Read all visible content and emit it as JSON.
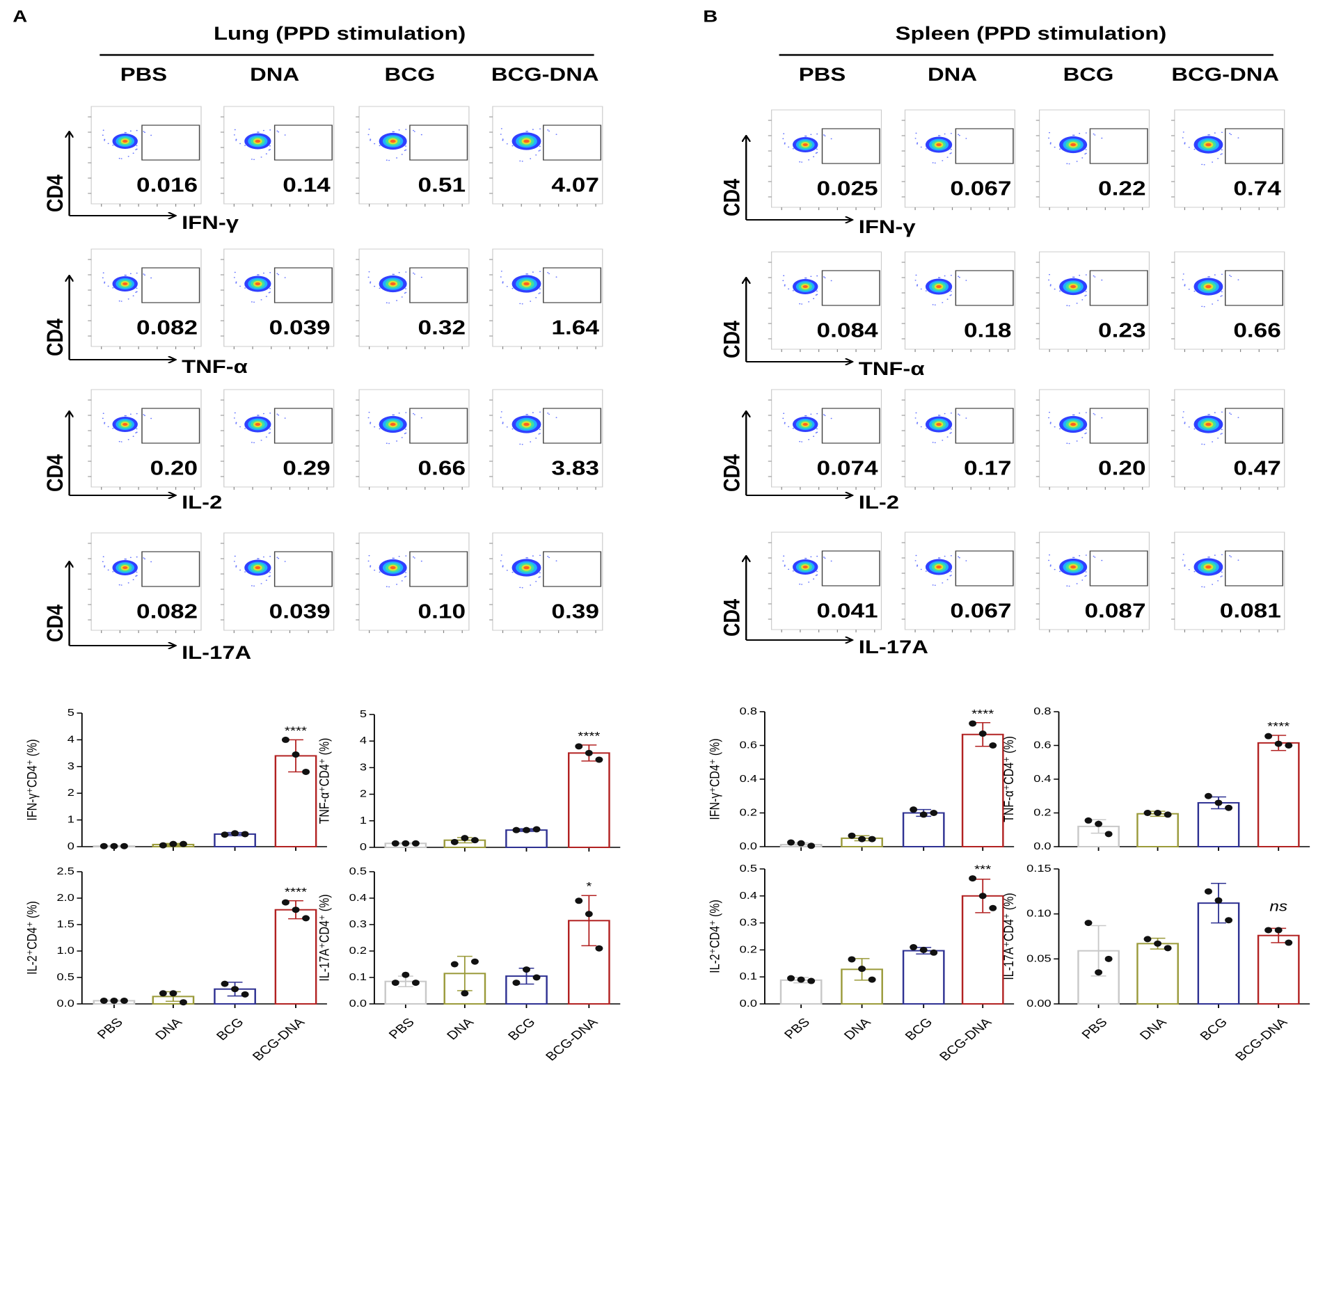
{
  "panels": [
    {
      "label": "A",
      "title": "Lung (PPD stimulation)",
      "groups": [
        "PBS",
        "DNA",
        "BCG",
        "BCG-DNA"
      ],
      "rows": [
        {
          "y_label": "CD4",
          "x_label": "IFN-γ",
          "values": [
            "0.016",
            "0.14",
            "0.51",
            "4.07"
          ]
        },
        {
          "y_label": "CD4",
          "x_label": "TNF-α",
          "values": [
            "0.082",
            "0.039",
            "0.32",
            "1.64"
          ]
        },
        {
          "y_label": "CD4",
          "x_label": "IL-2",
          "values": [
            "0.20",
            "0.29",
            "0.66",
            "3.83"
          ]
        },
        {
          "y_label": "CD4",
          "x_label": "IL-17A",
          "values": [
            "0.082",
            "0.039",
            "0.10",
            "0.39"
          ]
        }
      ]
    },
    {
      "label": "B",
      "title": "Spleen (PPD stimulation)",
      "groups": [
        "PBS",
        "DNA",
        "BCG",
        "BCG-DNA"
      ],
      "rows": [
        {
          "y_label": "CD4",
          "x_label": "IFN-γ",
          "values": [
            "0.025",
            "0.067",
            "0.22",
            "0.74"
          ]
        },
        {
          "y_label": "CD4",
          "x_label": "TNF-α",
          "values": [
            "0.084",
            "0.18",
            "0.23",
            "0.66"
          ]
        },
        {
          "y_label": "CD4",
          "x_label": "IL-2",
          "values": [
            "0.074",
            "0.17",
            "0.20",
            "0.47"
          ]
        },
        {
          "y_label": "CD4",
          "x_label": "IL-17A",
          "values": [
            "0.041",
            "0.067",
            "0.087",
            "0.081"
          ]
        }
      ]
    }
  ],
  "chart_data": [
    {
      "type": "bar",
      "ylabel": "IFN-γ⁺CD4⁺ (%)",
      "values": [
        0.02,
        0.08,
        0.47,
        3.4
      ],
      "errors": [
        0.02,
        0.04,
        0.06,
        0.6
      ],
      "points": [
        [
          0.02,
          0.02,
          0.02
        ],
        [
          0.05,
          0.1,
          0.1
        ],
        [
          0.45,
          0.5,
          0.47
        ],
        [
          4.0,
          3.45,
          2.8
        ]
      ],
      "colors": [
        "#c8c8c8",
        "#9a9a3a",
        "#2e3192",
        "#b22222"
      ],
      "annotations": [
        null,
        null,
        null,
        "****"
      ],
      "ylim": [
        0,
        5
      ],
      "yticks": [
        0,
        1,
        2,
        3,
        4,
        5
      ]
    },
    {
      "type": "bar",
      "ylabel": "TNF-α⁺CD4⁺ (%)",
      "values": [
        0.15,
        0.27,
        0.65,
        3.55
      ],
      "errors": [
        0.02,
        0.1,
        0.05,
        0.3
      ],
      "points": [
        [
          0.15,
          0.15,
          0.15
        ],
        [
          0.2,
          0.35,
          0.27
        ],
        [
          0.65,
          0.65,
          0.68
        ],
        [
          3.8,
          3.55,
          3.3
        ]
      ],
      "colors": [
        "#c8c8c8",
        "#9a9a3a",
        "#2e3192",
        "#b22222"
      ],
      "annotations": [
        null,
        null,
        null,
        "****"
      ],
      "ylim": [
        0,
        5
      ],
      "yticks": [
        0,
        1,
        2,
        3,
        4,
        5
      ]
    },
    {
      "type": "bar",
      "ylabel": "IL-2⁺CD4⁺ (%)",
      "categories": [
        "PBS",
        "DNA",
        "BCG",
        "BCG-DNA"
      ],
      "values": [
        0.06,
        0.14,
        0.28,
        1.78
      ],
      "errors": [
        0.01,
        0.09,
        0.13,
        0.17
      ],
      "points": [
        [
          0.06,
          0.06,
          0.06
        ],
        [
          0.2,
          0.2,
          0.03
        ],
        [
          0.38,
          0.28,
          0.18
        ],
        [
          1.92,
          1.78,
          1.62
        ]
      ],
      "colors": [
        "#c8c8c8",
        "#9a9a3a",
        "#2e3192",
        "#b22222"
      ],
      "annotations": [
        null,
        null,
        null,
        "****"
      ],
      "ylim": [
        0,
        2.5
      ],
      "yticks": [
        {
          "value": 0,
          "label": "0.0"
        },
        0.5,
        {
          "value": 1,
          "label": "1.0"
        },
        1.5,
        {
          "value": 2,
          "label": "2.0"
        },
        2.5
      ]
    },
    {
      "type": "bar",
      "ylabel": "IL-17A⁺CD4⁺ (%)",
      "categories": [
        "PBS",
        "DNA",
        "BCG",
        "BCG-DNA"
      ],
      "values": [
        0.085,
        0.115,
        0.105,
        0.315
      ],
      "errors": [
        0.02,
        0.065,
        0.03,
        0.095
      ],
      "points": [
        [
          0.08,
          0.11,
          0.08
        ],
        [
          0.15,
          0.04,
          0.16
        ],
        [
          0.08,
          0.13,
          0.1
        ],
        [
          0.39,
          0.34,
          0.21
        ]
      ],
      "colors": [
        "#c8c8c8",
        "#9a9a3a",
        "#2e3192",
        "#b22222"
      ],
      "annotations": [
        null,
        null,
        null,
        "*"
      ],
      "ylim": [
        0,
        0.5
      ],
      "yticks": [
        {
          "value": 0,
          "label": "0.0"
        },
        0.1,
        0.2,
        0.3,
        0.4,
        0.5
      ]
    },
    {
      "type": "bar",
      "ylabel": "IFN-γ⁺CD4⁺ (%)",
      "values": [
        0.012,
        0.05,
        0.2,
        0.665
      ],
      "errors": [
        0.01,
        0.015,
        0.02,
        0.07
      ],
      "points": [
        [
          0.025,
          0.02,
          0.005
        ],
        [
          0.065,
          0.045,
          0.045
        ],
        [
          0.22,
          0.19,
          0.2
        ],
        [
          0.73,
          0.67,
          0.6
        ]
      ],
      "colors": [
        "#c8c8c8",
        "#9a9a3a",
        "#2e3192",
        "#b22222"
      ],
      "annotations": [
        null,
        null,
        null,
        "****"
      ],
      "ylim": [
        0,
        0.8
      ],
      "yticks": [
        {
          "value": 0,
          "label": "0.0"
        },
        0.2,
        0.4,
        0.6,
        0.8
      ]
    },
    {
      "type": "bar",
      "ylabel": "TNF-α⁺CD4⁺ (%)",
      "values": [
        0.12,
        0.195,
        0.26,
        0.615
      ],
      "errors": [
        0.04,
        0.015,
        0.035,
        0.045
      ],
      "points": [
        [
          0.155,
          0.135,
          0.075
        ],
        [
          0.2,
          0.2,
          0.19
        ],
        [
          0.3,
          0.26,
          0.23
        ],
        [
          0.655,
          0.61,
          0.6
        ]
      ],
      "colors": [
        "#c8c8c8",
        "#9a9a3a",
        "#2e3192",
        "#b22222"
      ],
      "annotations": [
        null,
        null,
        null,
        "****"
      ],
      "ylim": [
        0,
        0.8
      ],
      "yticks": [
        {
          "value": 0,
          "label": "0.0"
        },
        0.2,
        0.4,
        0.6,
        0.8
      ]
    },
    {
      "type": "bar",
      "ylabel": "IL-2⁺CD4⁺ (%)",
      "categories": [
        "PBS",
        "DNA",
        "BCG",
        "BCG-DNA"
      ],
      "values": [
        0.088,
        0.128,
        0.197,
        0.4
      ],
      "errors": [
        0.01,
        0.04,
        0.012,
        0.062
      ],
      "points": [
        [
          0.095,
          0.09,
          0.085
        ],
        [
          0.165,
          0.13,
          0.09
        ],
        [
          0.21,
          0.2,
          0.19
        ],
        [
          0.465,
          0.4,
          0.355
        ]
      ],
      "colors": [
        "#c8c8c8",
        "#9a9a3a",
        "#2e3192",
        "#b22222"
      ],
      "annotations": [
        null,
        null,
        null,
        "***"
      ],
      "ylim": [
        0,
        0.5
      ],
      "yticks": [
        {
          "value": 0,
          "label": "0.0"
        },
        0.1,
        0.2,
        0.3,
        0.4,
        0.5
      ]
    },
    {
      "type": "bar",
      "ylabel": "IL-17A⁺CD4⁺ (%)",
      "categories": [
        "PBS",
        "DNA",
        "BCG",
        "BCG-DNA"
      ],
      "values": [
        0.059,
        0.067,
        0.112,
        0.076
      ],
      "errors": [
        0.028,
        0.006,
        0.022,
        0.008
      ],
      "points": [
        [
          0.09,
          0.035,
          0.05
        ],
        [
          0.072,
          0.067,
          0.062
        ],
        [
          0.125,
          0.115,
          0.093
        ],
        [
          0.082,
          0.082,
          0.068
        ]
      ],
      "colors": [
        "#c8c8c8",
        "#9a9a3a",
        "#2e3192",
        "#b22222"
      ],
      "annotations": [
        null,
        null,
        null,
        "ns"
      ],
      "ylim": [
        0,
        0.15
      ],
      "yticks": [
        {
          "value": 0,
          "label": "0.00"
        },
        0.05,
        {
          "value": 0.1,
          "label": "0.10"
        },
        0.15
      ]
    }
  ]
}
